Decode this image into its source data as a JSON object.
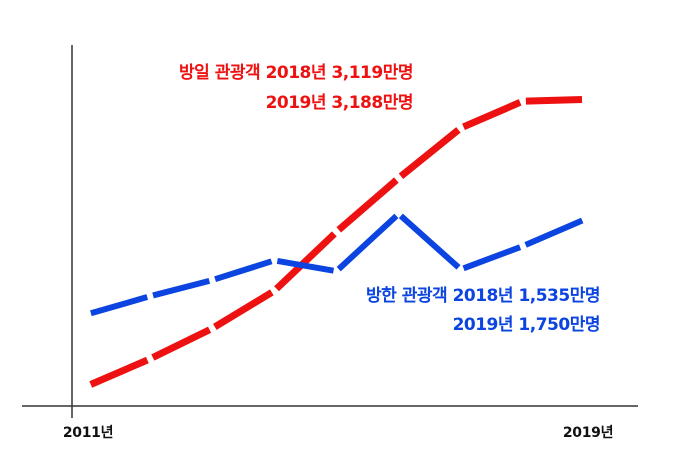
{
  "chart_data": {
    "type": "line",
    "x_range": [
      "2011년",
      "2019년"
    ],
    "tick_labels": [
      "2011년",
      "2019년"
    ],
    "series": [
      {
        "key": "japan",
        "color": "#ee1111",
        "values": [
          8,
          23,
          40,
          61,
          94,
          124,
          152,
          167,
          168
        ]
      },
      {
        "key": "korea",
        "color": "#0b44e0",
        "values": [
          48,
          58,
          67,
          78,
          72,
          104,
          73,
          86,
          101
        ]
      }
    ],
    "annotations": [
      {
        "series": "japan",
        "line1": "방일 관광객 2018년 3,119만명",
        "line2": "2019년 3,188만명"
      },
      {
        "series": "korea",
        "line1": "방한 관광객 2018년 1,535만명",
        "line2": "2019년 1,750만명"
      }
    ],
    "grid": false,
    "legend": "none"
  }
}
